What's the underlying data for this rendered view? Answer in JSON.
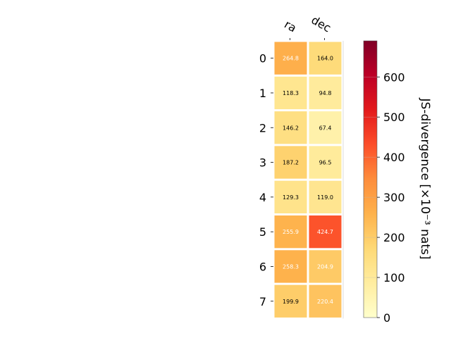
{
  "chart_data": {
    "type": "heatmap",
    "columns": [
      "ra",
      "dec"
    ],
    "rows": [
      "0",
      "1",
      "2",
      "3",
      "4",
      "5",
      "6",
      "7"
    ],
    "values": [
      [
        264.8,
        164.0
      ],
      [
        118.3,
        94.8
      ],
      [
        146.2,
        67.4
      ],
      [
        187.2,
        96.5
      ],
      [
        129.3,
        119.0
      ],
      [
        255.9,
        424.7
      ],
      [
        258.3,
        204.9
      ],
      [
        199.9,
        220.4
      ]
    ],
    "colorbar": {
      "label": "JS-divergence [×10⁻³ nats]",
      "range": [
        0,
        690
      ],
      "ticks": [
        "0",
        "100",
        "200",
        "300",
        "400",
        "500",
        "600"
      ],
      "colormap": "YlOrRd"
    },
    "cell_label_colors": {
      "dark": "#000000",
      "light": "#ffffff"
    }
  }
}
